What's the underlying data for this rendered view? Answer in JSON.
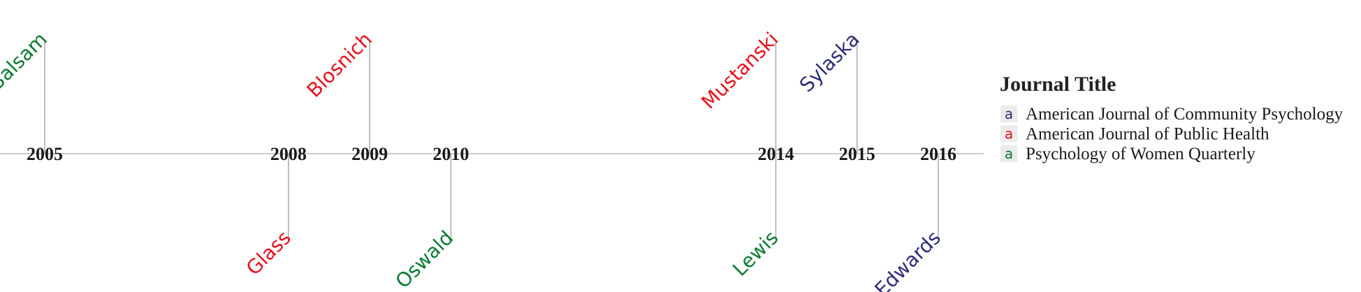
{
  "chart_data": {
    "type": "timeline",
    "years": [
      2005,
      2008,
      2009,
      2010,
      2014,
      2015,
      2016
    ],
    "events": [
      {
        "year": 2005,
        "label": "Balsam",
        "journal": "Psychology of Women Quarterly",
        "side": "above"
      },
      {
        "year": 2008,
        "label": "Glass",
        "journal": "American Journal of Public Health",
        "side": "below"
      },
      {
        "year": 2009,
        "label": "Blosnich",
        "journal": "American Journal of Public Health",
        "side": "above"
      },
      {
        "year": 2010,
        "label": "Oswald",
        "journal": "Psychology of Women Quarterly",
        "side": "below"
      },
      {
        "year": 2014,
        "label": "Mustanski",
        "journal": "American Journal of Public Health",
        "side": "above"
      },
      {
        "year": 2014,
        "label": "Lewis",
        "journal": "Psychology of Women Quarterly",
        "side": "below"
      },
      {
        "year": 2015,
        "label": "Sylaska",
        "journal": "American Journal of Community Psychology",
        "side": "above"
      },
      {
        "year": 2016,
        "label": "Edwards",
        "journal": "American Journal of Community Psychology",
        "side": "below"
      }
    ],
    "legend": {
      "title": "Journal Title",
      "placement": "right",
      "entries": [
        {
          "name": "American Journal of Community Psychology",
          "color": "#2b2d7a"
        },
        {
          "name": "American Journal of Public Health",
          "color": "#e8101c"
        },
        {
          "name": "Psychology of Women Quarterly",
          "color": "#0a7a32"
        }
      ]
    },
    "xlim": [
      2004.5,
      2016.6
    ]
  }
}
